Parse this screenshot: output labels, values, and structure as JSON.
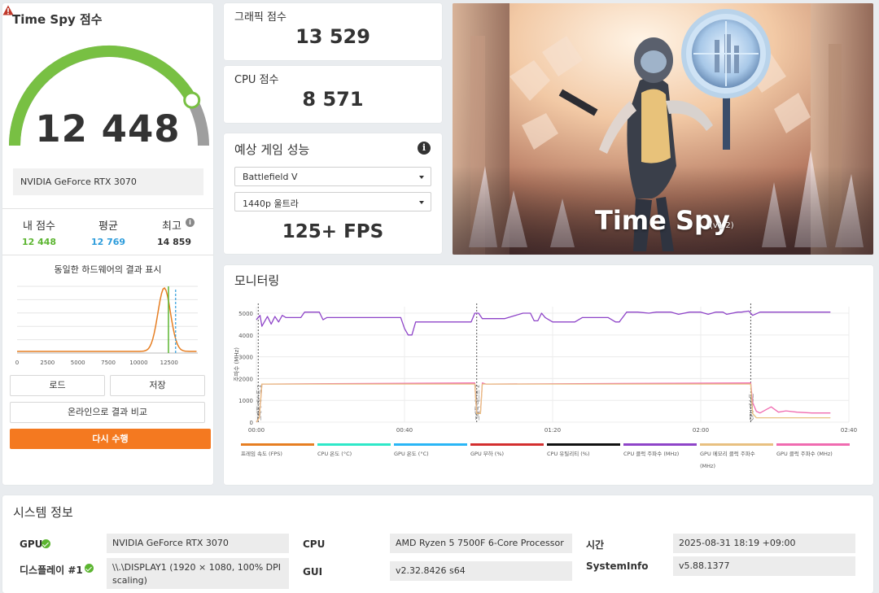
{
  "score": {
    "title": "Time Spy 점수",
    "total": "12 448",
    "gpu_name": "NVIDIA GeForce RTX 3070",
    "my_label": "내 점수",
    "my_value": "12 448",
    "avg_label": "평균",
    "avg_value": "12 769",
    "best_label": "최고",
    "best_value": "14 859",
    "dist_title": "동일한 하드웨어의 결과 표시",
    "dist_ticks": [
      "0",
      "2500",
      "5000",
      "7500",
      "10000",
      "12500"
    ],
    "load_label": "로드",
    "save_label": "저장",
    "compare_label": "온라인으로 결과 비교",
    "run_label": "다시 수행",
    "gauge_fraction": 0.84,
    "colors": {
      "gauge": "#78c043",
      "my": "#5cb531",
      "avg": "#2d9cdb"
    }
  },
  "graphics": {
    "label": "그래픽 점수",
    "value": "13 529"
  },
  "cpu": {
    "label": "CPU 점수",
    "value": "8 571"
  },
  "game": {
    "title": "예상 게임 성능",
    "game_select": "Battlefield V",
    "res_select": "1440p 울트라",
    "fps": "125+ FPS"
  },
  "hero": {
    "title": "Time Spy",
    "version": "(v1.2)"
  },
  "monitor": {
    "title": "모니터링"
  },
  "chart_data": {
    "type": "line",
    "ylabel": "주파수 (MHz)",
    "y_ticks": [
      0,
      1000,
      2000,
      3000,
      4000,
      5000
    ],
    "ylim": [
      0,
      5300
    ],
    "x_ticks": [
      "00:00",
      "00:40",
      "01:20",
      "02:00",
      "02:40"
    ],
    "xlim": [
      0,
      160
    ],
    "phase_markers": [
      {
        "x": 0.5,
        "label": "그래픽 테스트 1"
      },
      {
        "x": 59.5,
        "label": "그래픽 테스트 2"
      },
      {
        "x": 133.5,
        "label": "CPU 테스트"
      }
    ],
    "series": [
      {
        "name": "CPU 클럭 주파수 (MHz)",
        "color": "#8e44c8",
        "x": [
          0,
          1,
          1.5,
          3,
          4,
          5,
          6,
          7,
          8,
          9,
          10,
          12,
          13,
          14,
          17,
          18,
          19,
          21,
          23,
          30,
          33,
          34,
          39,
          40,
          41,
          42,
          43,
          46,
          50,
          58,
          59,
          60,
          61,
          62,
          67,
          72,
          74,
          75,
          76,
          77,
          78,
          80,
          84,
          86,
          88,
          95,
          97,
          98,
          100,
          101,
          102,
          103,
          106,
          108,
          112,
          114,
          117,
          120,
          122,
          124,
          126,
          127,
          130,
          131,
          133,
          134,
          136,
          140,
          145,
          150,
          155
        ],
        "y": [
          4700,
          4900,
          4400,
          4850,
          4500,
          4850,
          4600,
          4900,
          4800,
          4800,
          4800,
          4800,
          5050,
          5050,
          5050,
          4700,
          4800,
          4800,
          4800,
          4800,
          4800,
          4800,
          4800,
          4300,
          4000,
          4000,
          4600,
          4600,
          4600,
          4600,
          5000,
          5000,
          4750,
          4750,
          4750,
          5000,
          5000,
          4650,
          4650,
          5000,
          4800,
          4600,
          4600,
          4600,
          4800,
          4800,
          4600,
          4600,
          5050,
          5050,
          5050,
          5050,
          5000,
          5050,
          5050,
          4950,
          5050,
          5050,
          4950,
          5050,
          5050,
          4950,
          5050,
          5050,
          5100,
          4900,
          5050,
          5050,
          5050,
          5050,
          5050
        ]
      },
      {
        "name": "GPU 클럭 주파수 (MHz)",
        "color": "#f06bb0",
        "x": [
          0,
          0.8,
          1.5,
          3,
          59,
          59.5,
          60.5,
          61,
          62,
          63,
          133,
          133.5,
          134,
          135,
          136,
          139,
          141,
          143,
          146,
          150,
          155
        ],
        "y": [
          0,
          200,
          1750,
          1750,
          1800,
          400,
          400,
          1800,
          1750,
          1750,
          1800,
          1800,
          900,
          500,
          420,
          700,
          460,
          520,
          460,
          420,
          420
        ]
      },
      {
        "name": "GPU 메모리 클럭 주파수 (MHz)",
        "color": "#e8c080",
        "x": [
          0,
          0.8,
          1.5,
          59,
          59.5,
          60.5,
          61,
          133,
          133.5,
          134,
          135,
          136,
          155
        ],
        "y": [
          0,
          200,
          1750,
          1750,
          400,
          400,
          1750,
          1750,
          1750,
          400,
          200,
          200,
          200
        ]
      }
    ],
    "legend": [
      {
        "name": "프레임 속도 (FPS)",
        "color": "#e67e22"
      },
      {
        "name": "CPU 온도 (°C)",
        "color": "#2ee8c8"
      },
      {
        "name": "GPU 온도 (°C)",
        "color": "#29b6f6"
      },
      {
        "name": "GPU 부하 (%)",
        "color": "#d32f2f"
      },
      {
        "name": "CPU 유틸리티 (%)",
        "color": "#111111"
      },
      {
        "name": "CPU 클럭 주파수 (MHz)",
        "color": "#8e44c8"
      },
      {
        "name": "GPU 메모리 클럭 주파수 (MHz)",
        "color": "#e8c080"
      },
      {
        "name": "GPU 클럭 주파수 (MHz)",
        "color": "#f06bb0"
      }
    ]
  },
  "distribution": {
    "type": "line",
    "x_ticks": [
      0,
      2500,
      5000,
      7500,
      10000,
      12500
    ],
    "xlim": [
      0,
      14859
    ],
    "curve_color": "#e67e22",
    "my_score": 12448,
    "avg_score": 12769
  },
  "system": {
    "title": "시스템 정보",
    "gpu_label": "GPU",
    "gpu_value": "NVIDIA GeForce RTX 3070",
    "display_label": "디스플레이 #1",
    "display_value": "\\\\.\\DISPLAY1 (1920 × 1080, 100% DPI scaling)",
    "cpu_label": "CPU",
    "cpu_value": "AMD Ryzen 5 7500F 6-Core Processor",
    "gui_label": "GUI",
    "gui_value": "v2.32.8426 s64",
    "time_label": "시간",
    "time_value": "2025-08-31 18:19 +09:00",
    "sysinfo_label": "SystemInfo",
    "sysinfo_value": "v5.88.1377"
  }
}
